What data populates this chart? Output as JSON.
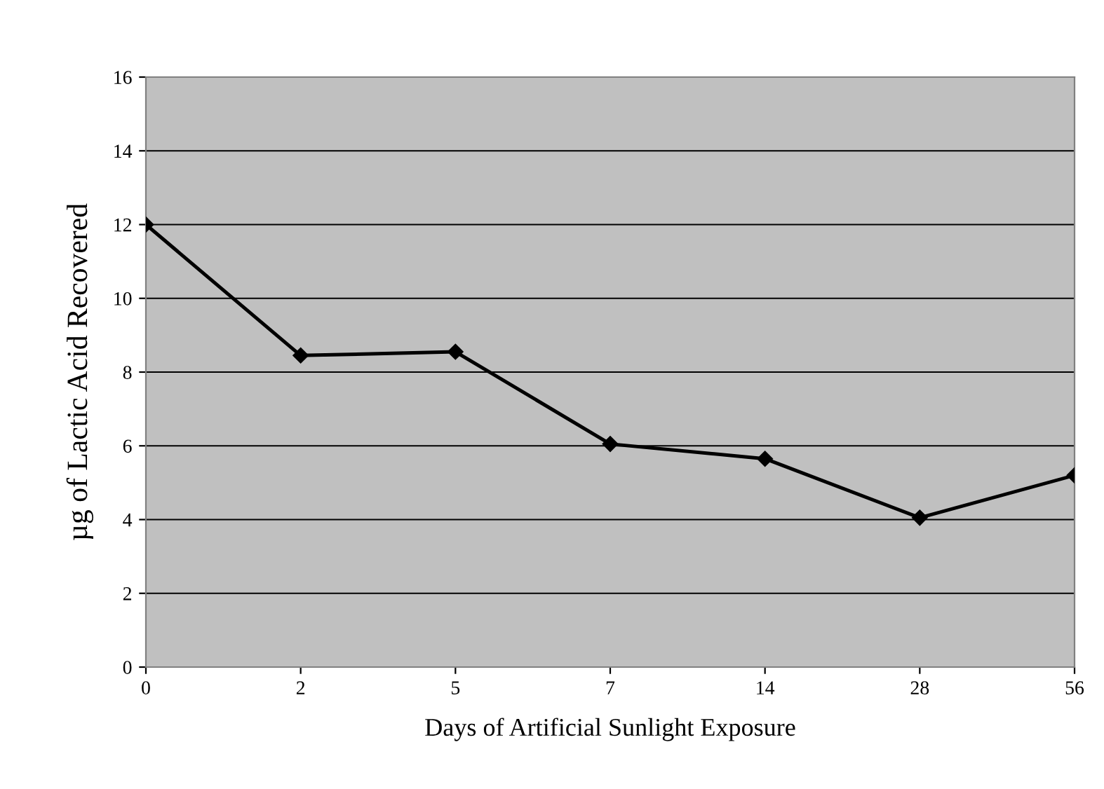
{
  "chart_data": {
    "type": "line",
    "xlabel": "Days of Artificial Sunlight Exposure",
    "ylabel": "µg of Lactic Acid Recovered",
    "categories": [
      "0",
      "2",
      "5",
      "7",
      "14",
      "28",
      "56"
    ],
    "series": [
      {
        "color": "#000000",
        "values": [
          12.0,
          8.45,
          8.55,
          6.05,
          5.65,
          4.05,
          5.2
        ]
      }
    ],
    "ylim": [
      0,
      16
    ],
    "yticks": [
      0,
      2,
      4,
      6,
      8,
      10,
      12,
      14,
      16
    ],
    "grid": "y",
    "marker": "diamond",
    "line_style": "solid",
    "legend": false
  }
}
